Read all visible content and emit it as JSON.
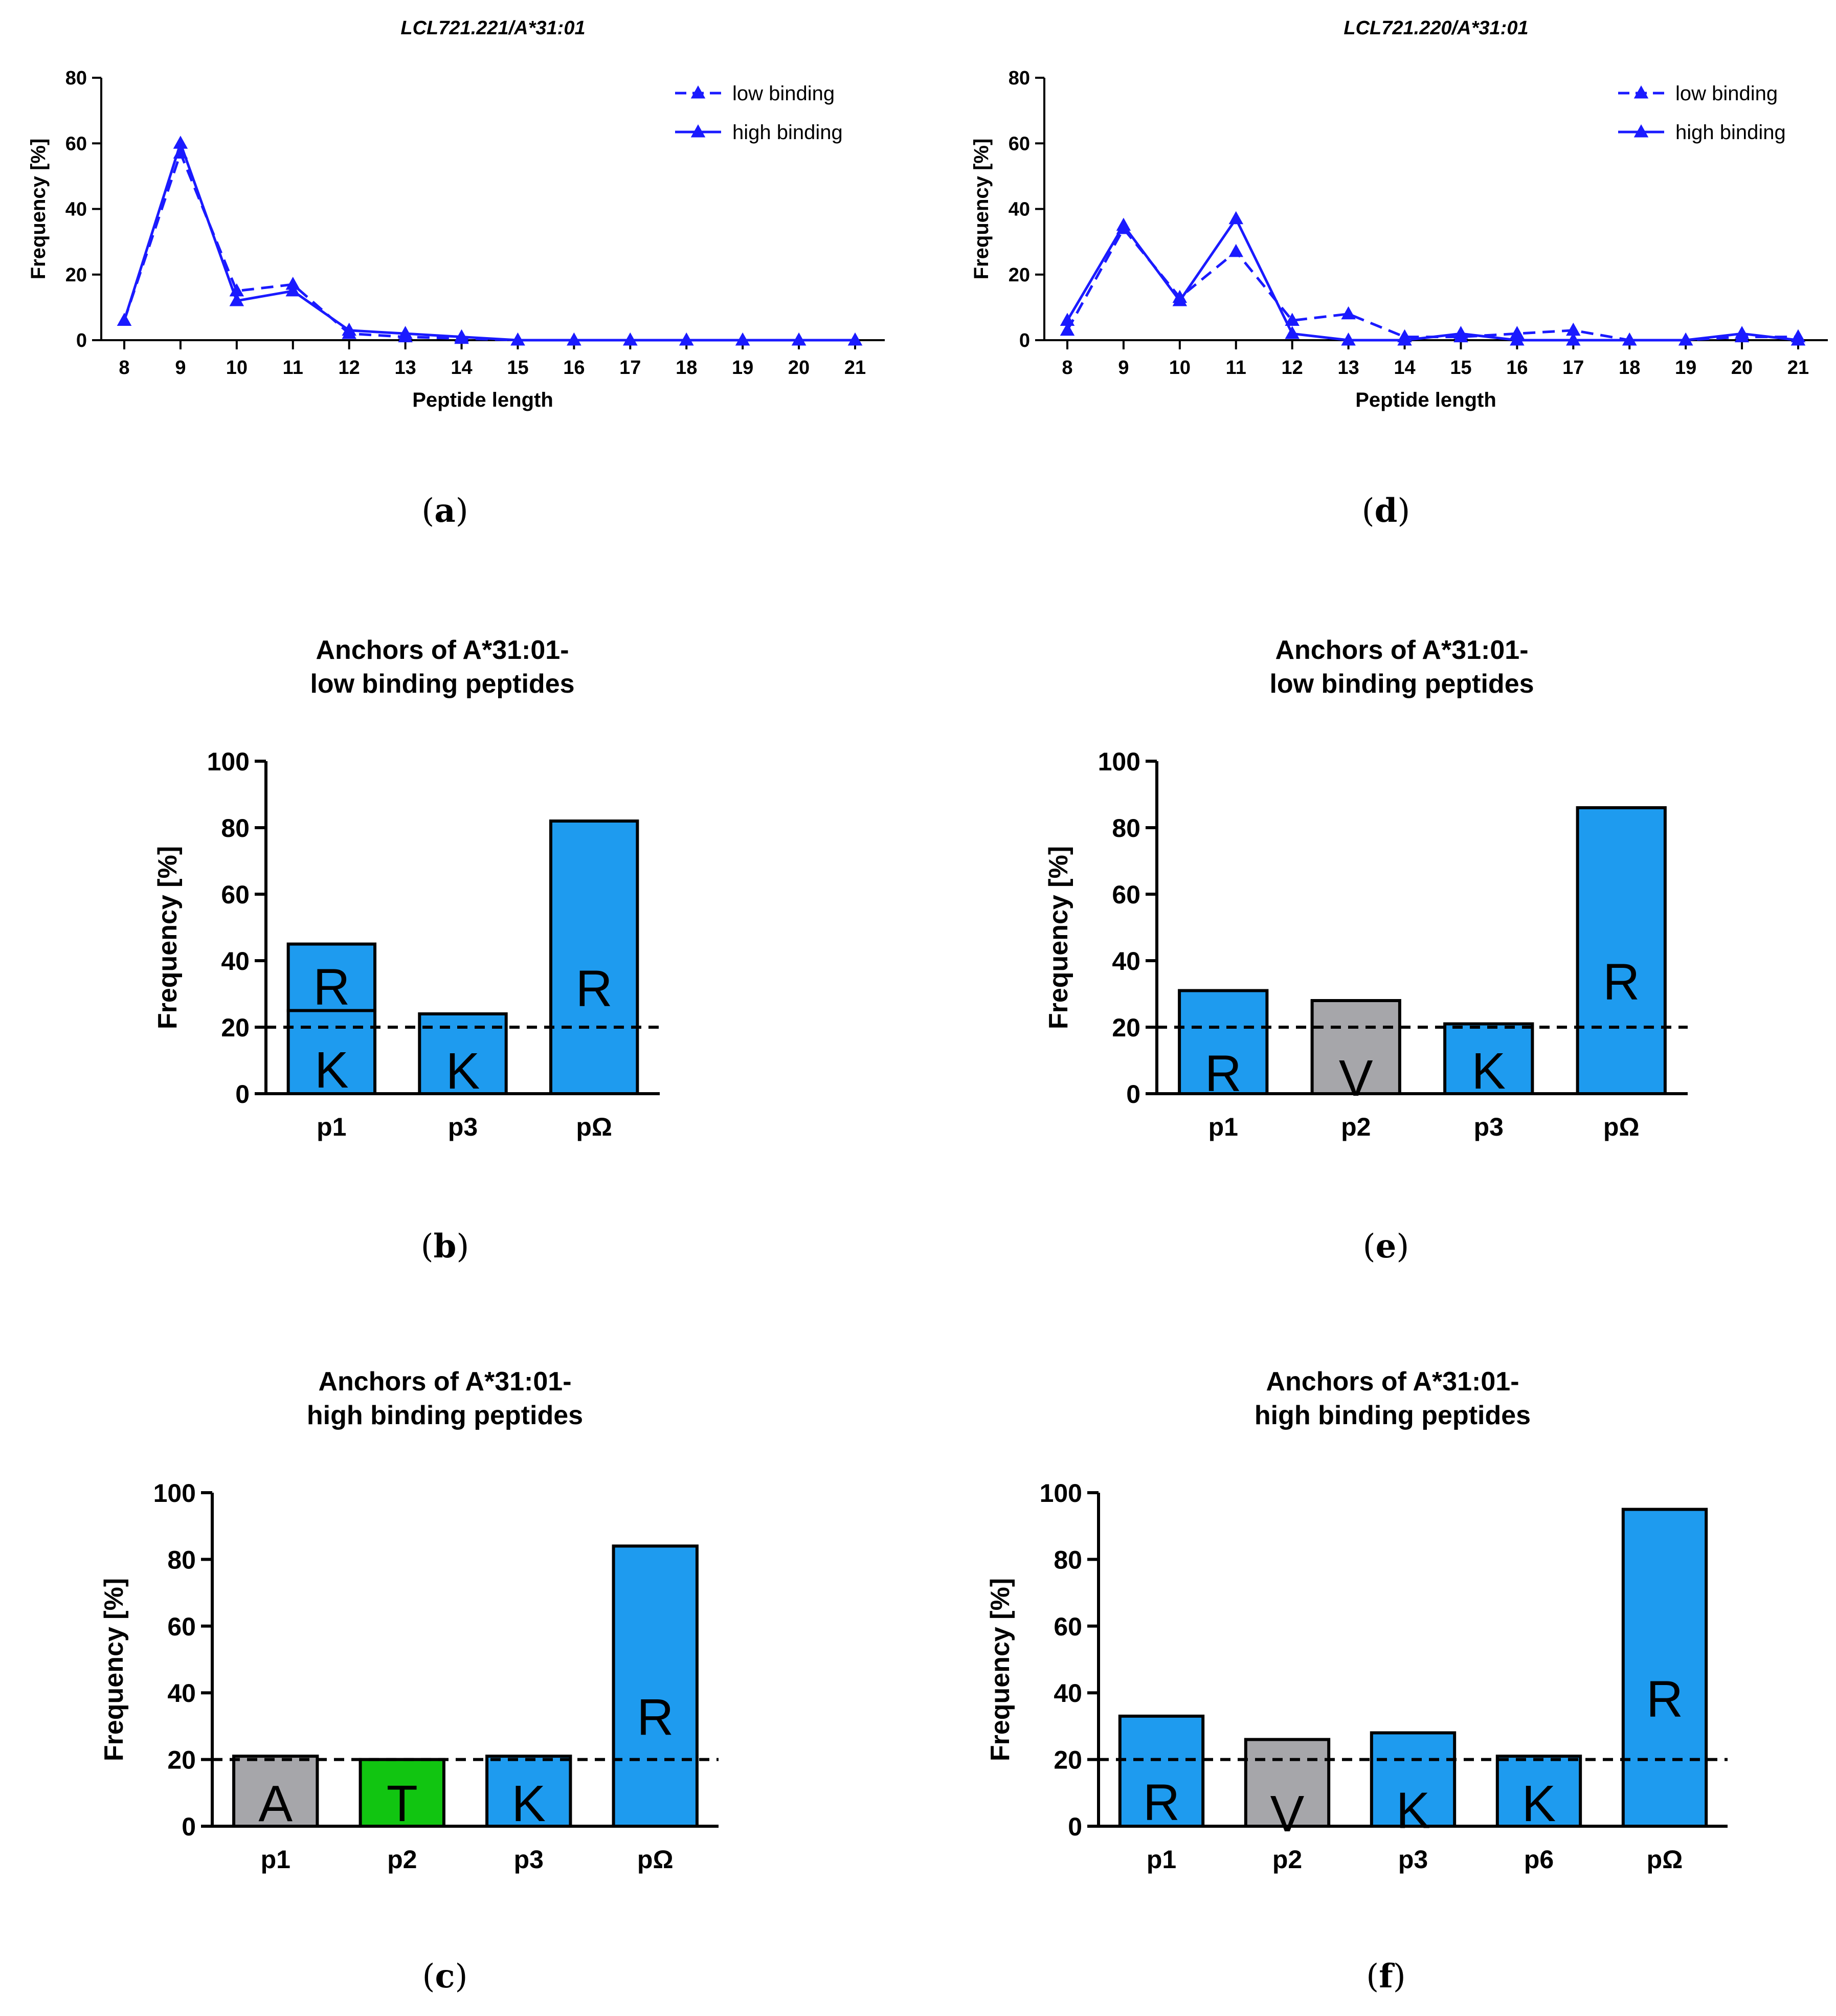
{
  "colors": {
    "line": "#1a1aff",
    "bar_blue": "#1e9bef",
    "bar_gray": "#a6a6aa",
    "bar_green": "#11c511",
    "axis": "#000000"
  },
  "chart_data": [
    {
      "id": "a",
      "panel_label": "a",
      "type": "line",
      "title": "LCL721.221/A*31:01",
      "xlabel": "Peptide length",
      "ylabel": "Frequency [%]",
      "x": [
        8,
        9,
        10,
        11,
        12,
        13,
        14,
        15,
        16,
        17,
        18,
        19,
        20,
        21
      ],
      "x_ticks": [
        "8",
        "9",
        "10",
        "11",
        "12",
        "13",
        "14",
        "15",
        "16",
        "17",
        "18",
        "19",
        "20",
        "21"
      ],
      "ylim": [
        0,
        80
      ],
      "y_ticks": [
        "0",
        "20",
        "40",
        "60",
        "80"
      ],
      "legend": "top-right",
      "series": [
        {
          "name": "low binding",
          "style": "dashed",
          "values": [
            6,
            57,
            15,
            17,
            2,
            1,
            0.5,
            0,
            0,
            0,
            0,
            0,
            0,
            0
          ]
        },
        {
          "name": "high binding",
          "style": "solid",
          "values": [
            6,
            60,
            12,
            15,
            3,
            2,
            1,
            0,
            0,
            0,
            0,
            0,
            0,
            0
          ]
        }
      ]
    },
    {
      "id": "d",
      "panel_label": "d",
      "type": "line",
      "title": "LCL721.220/A*31:01",
      "xlabel": "Peptide length",
      "ylabel": "Frequency [%]",
      "x": [
        8,
        9,
        10,
        11,
        12,
        13,
        14,
        15,
        16,
        17,
        18,
        19,
        20,
        21
      ],
      "x_ticks": [
        "8",
        "9",
        "10",
        "11",
        "12",
        "13",
        "14",
        "15",
        "16",
        "17",
        "18",
        "19",
        "20",
        "21"
      ],
      "ylim": [
        0,
        80
      ],
      "y_ticks": [
        "0",
        "20",
        "40",
        "60",
        "80"
      ],
      "legend": "top-right",
      "series": [
        {
          "name": "low binding",
          "style": "dashed",
          "values": [
            3,
            34,
            13,
            27,
            6,
            8,
            1,
            1,
            2,
            3,
            0,
            0,
            1,
            1
          ]
        },
        {
          "name": "high binding",
          "style": "solid",
          "values": [
            6,
            35,
            12,
            37,
            2,
            0,
            0,
            2,
            0,
            0,
            0,
            0,
            2,
            0
          ]
        }
      ]
    },
    {
      "id": "b",
      "panel_label": "b",
      "type": "bar",
      "title_lines": [
        "Anchors of A*31:01-",
        "low binding peptides"
      ],
      "ylabel": "Frequency [%]",
      "ylim": [
        0,
        100
      ],
      "y_ticks": [
        "0",
        "20",
        "40",
        "60",
        "80",
        "100"
      ],
      "threshold": 20,
      "bars": [
        {
          "category": "p1",
          "segments": [
            {
              "residue": "K",
              "value": 25,
              "color": "blue"
            },
            {
              "residue": "R",
              "value": 20,
              "color": "blue"
            }
          ]
        },
        {
          "category": "p3",
          "segments": [
            {
              "residue": "K",
              "value": 24,
              "color": "blue"
            }
          ]
        },
        {
          "category": "pΩ",
          "segments": [
            {
              "residue": "R",
              "value": 82,
              "color": "blue"
            }
          ]
        }
      ]
    },
    {
      "id": "e",
      "panel_label": "e",
      "type": "bar",
      "title_lines": [
        "Anchors of A*31:01-",
        "low binding peptides"
      ],
      "ylabel": "Frequency [%]",
      "ylim": [
        0,
        100
      ],
      "y_ticks": [
        "0",
        "20",
        "40",
        "60",
        "80",
        "100"
      ],
      "threshold": 20,
      "bars": [
        {
          "category": "p1",
          "segments": [
            {
              "residue": "R",
              "value": 31,
              "color": "blue"
            }
          ]
        },
        {
          "category": "p2",
          "segments": [
            {
              "residue": "V",
              "value": 28,
              "color": "gray"
            }
          ]
        },
        {
          "category": "p3",
          "segments": [
            {
              "residue": "K",
              "value": 21,
              "color": "blue"
            }
          ]
        },
        {
          "category": "pΩ",
          "segments": [
            {
              "residue": "R",
              "value": 86,
              "color": "blue"
            }
          ]
        }
      ]
    },
    {
      "id": "c",
      "panel_label": "c",
      "type": "bar",
      "title_lines": [
        "Anchors of A*31:01-",
        "high binding peptides"
      ],
      "ylabel": "Frequency [%]",
      "ylim": [
        0,
        100
      ],
      "y_ticks": [
        "0",
        "20",
        "40",
        "60",
        "80",
        "100"
      ],
      "threshold": 20,
      "bars": [
        {
          "category": "p1",
          "segments": [
            {
              "residue": "A",
              "value": 21,
              "color": "gray"
            }
          ]
        },
        {
          "category": "p2",
          "segments": [
            {
              "residue": "T",
              "value": 20,
              "color": "green"
            }
          ]
        },
        {
          "category": "p3",
          "segments": [
            {
              "residue": "K",
              "value": 21,
              "color": "blue"
            }
          ]
        },
        {
          "category": "pΩ",
          "segments": [
            {
              "residue": "R",
              "value": 84,
              "color": "blue"
            }
          ]
        }
      ]
    },
    {
      "id": "f",
      "panel_label": "f",
      "type": "bar",
      "title_lines": [
        "Anchors of A*31:01-",
        "high binding peptides"
      ],
      "ylabel": "Frequency [%]",
      "ylim": [
        0,
        100
      ],
      "y_ticks": [
        "0",
        "20",
        "40",
        "60",
        "80",
        "100"
      ],
      "threshold": 20,
      "bars": [
        {
          "category": "p1",
          "segments": [
            {
              "residue": "R",
              "value": 33,
              "color": "blue"
            }
          ]
        },
        {
          "category": "p2",
          "segments": [
            {
              "residue": "V",
              "value": 26,
              "color": "gray"
            }
          ]
        },
        {
          "category": "p3",
          "segments": [
            {
              "residue": "K",
              "value": 28,
              "color": "blue"
            }
          ]
        },
        {
          "category": "p6",
          "segments": [
            {
              "residue": "K",
              "value": 21,
              "color": "blue"
            }
          ]
        },
        {
          "category": "pΩ",
          "segments": [
            {
              "residue": "R",
              "value": 95,
              "color": "blue"
            }
          ]
        }
      ]
    }
  ]
}
